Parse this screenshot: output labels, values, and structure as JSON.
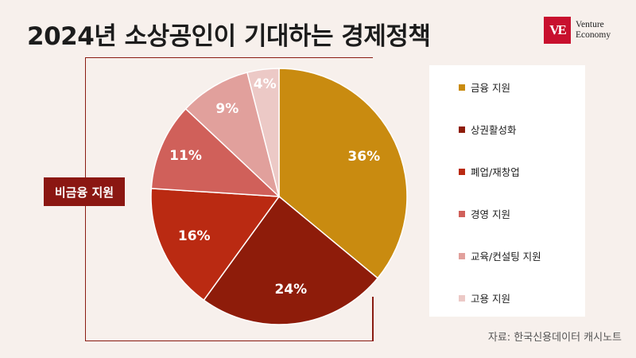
{
  "header": {
    "title": "2024년 소상공인이 기대하는 경제정책",
    "brand_mark": "VE",
    "brand_line1": "Venture",
    "brand_line2": "Economy"
  },
  "annotation": {
    "group_label": "비금융 지원"
  },
  "source": "자료: 한국신용데이터 캐시노트",
  "colors": {
    "background": "#f7f0ec",
    "accent": "#8b1712",
    "brand": "#c8102e"
  },
  "chart_data": {
    "type": "pie",
    "title": "2024년 소상공인이 기대하는 경제정책",
    "labels": [
      "금융 지원",
      "상권활성화",
      "폐업/재창업",
      "경영 지원",
      "교육/컨설팅 지원",
      "고용 지원"
    ],
    "values": [
      36,
      24,
      16,
      11,
      9,
      4
    ],
    "value_labels": [
      "36%",
      "24%",
      "16%",
      "11%",
      "9%",
      "4%"
    ],
    "colors": [
      "#c98b10",
      "#8e1c0a",
      "#ba2a12",
      "#d0605a",
      "#e1a09c",
      "#ecc9c6"
    ],
    "start": "12 o'clock, clockwise",
    "legend_position": "right"
  }
}
